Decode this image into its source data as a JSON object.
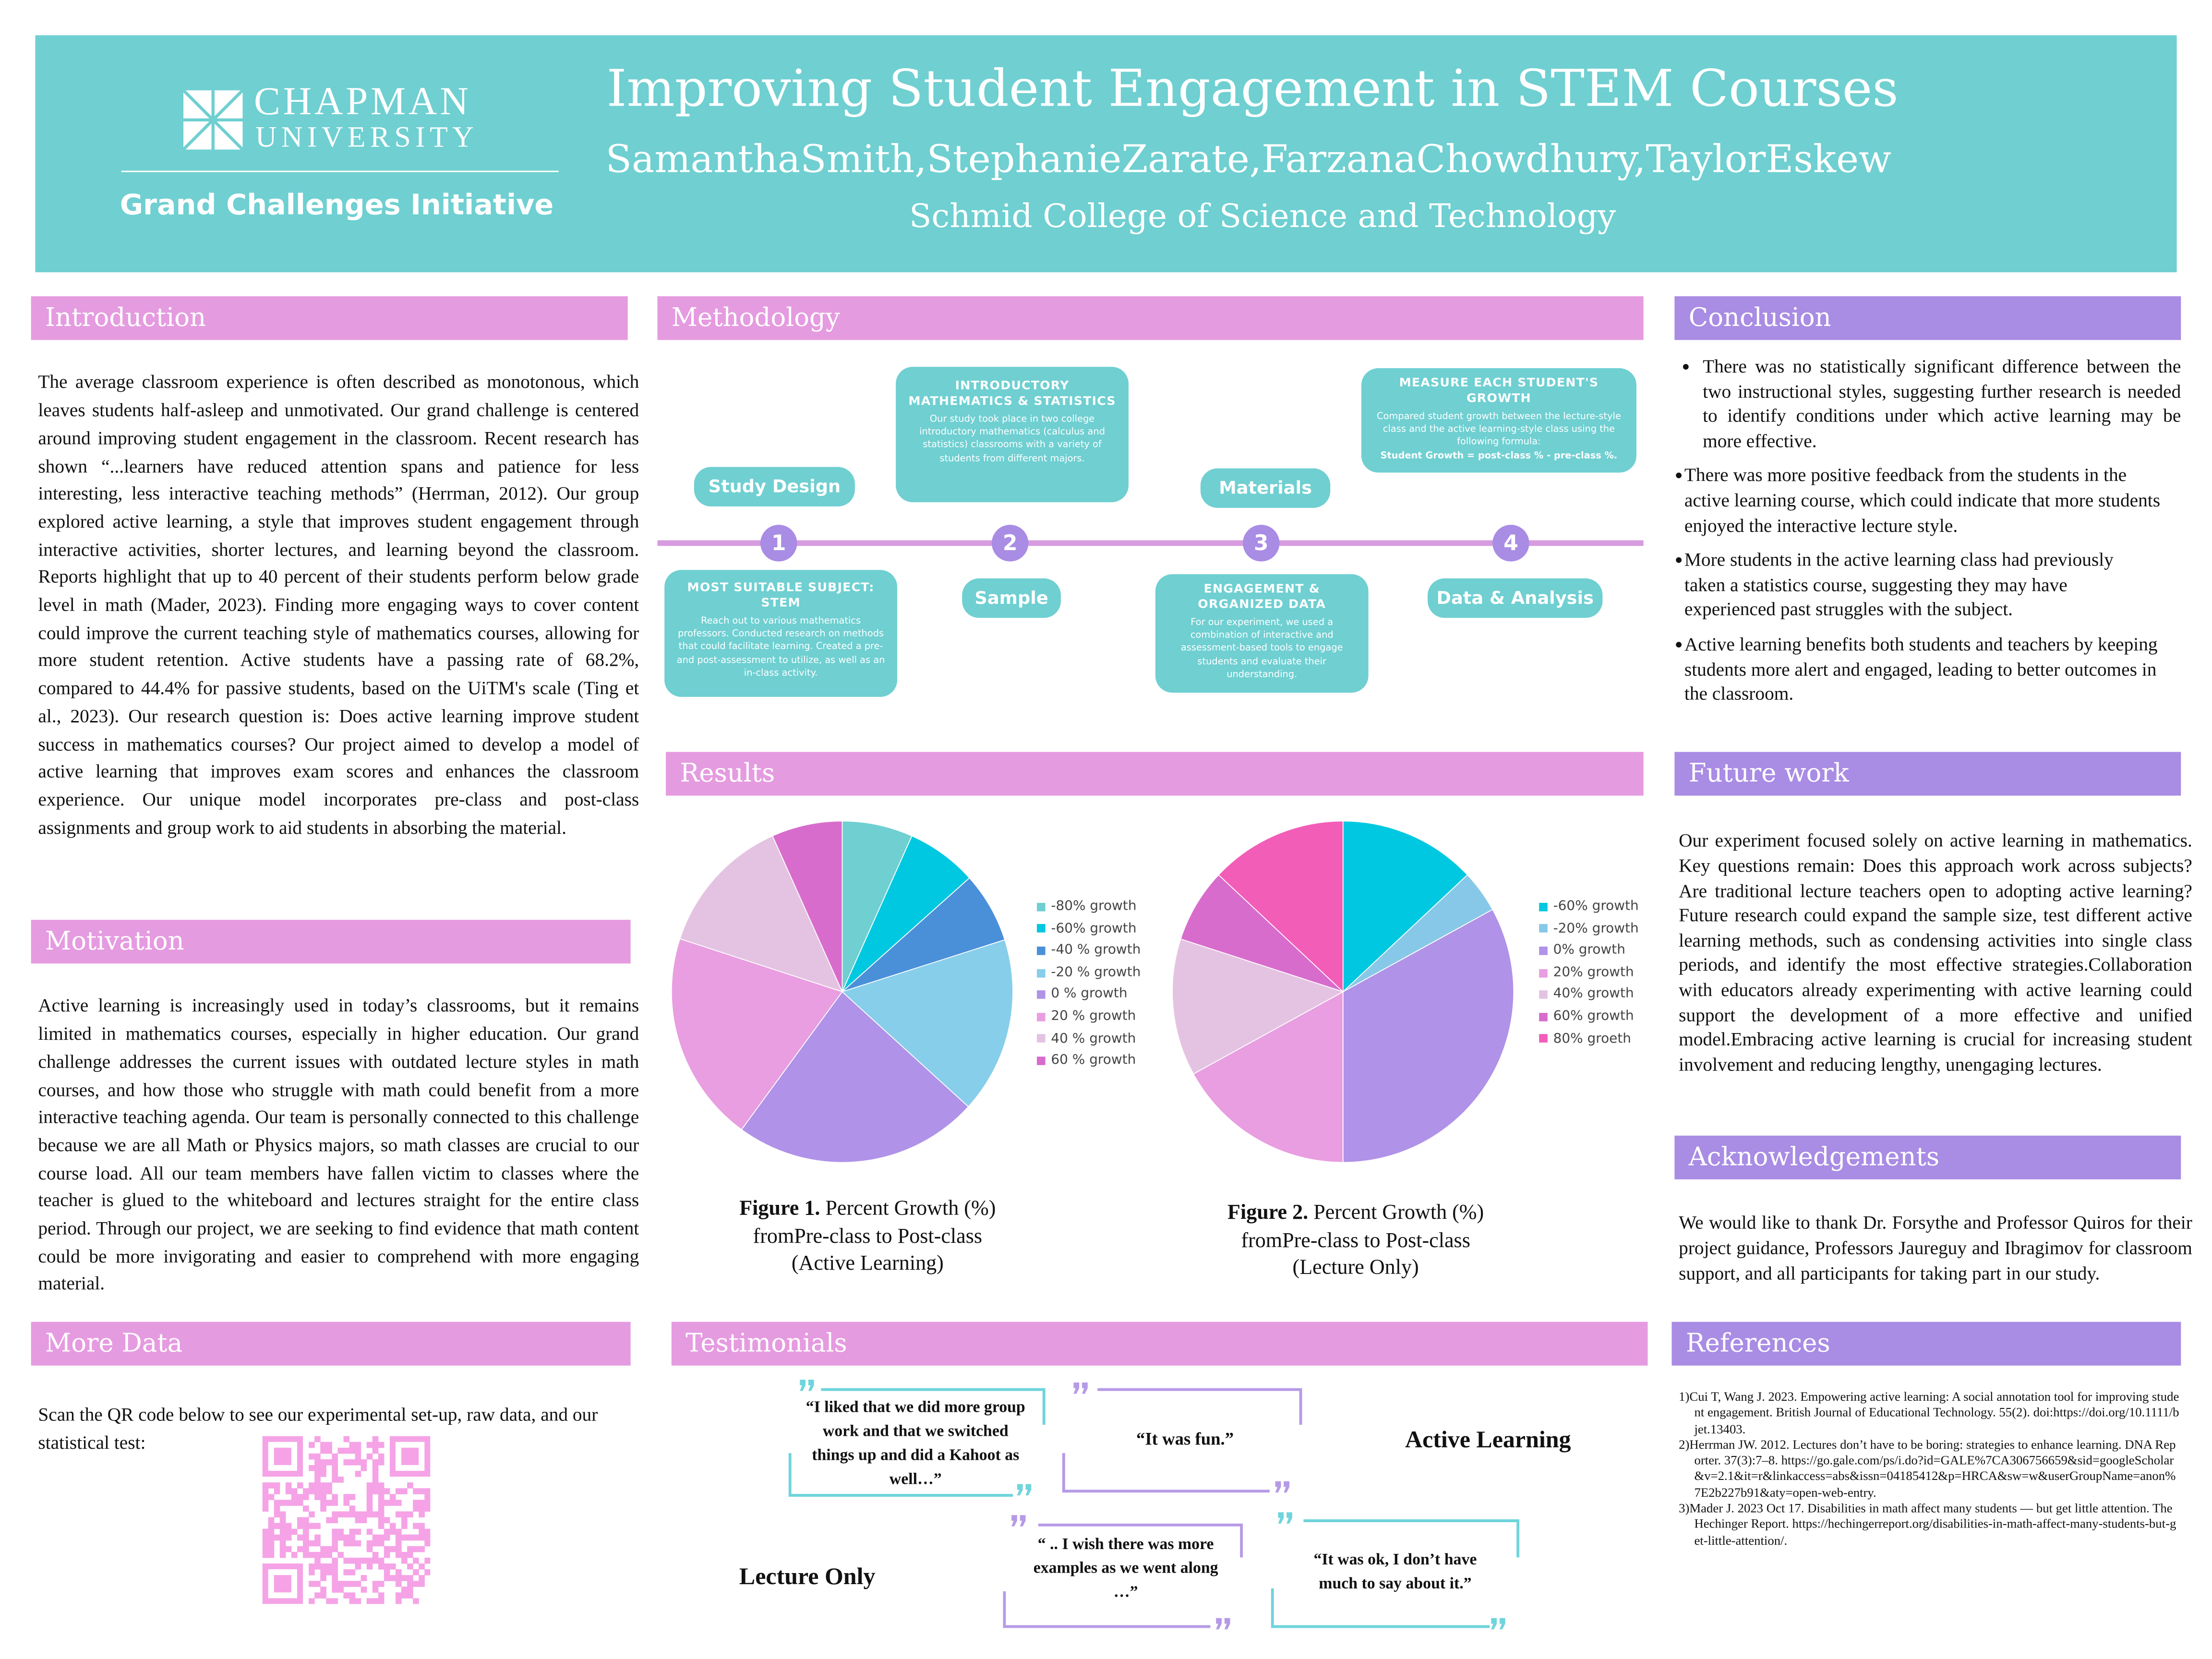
{
  "header": {
    "logo_line1": "CHAPMAN",
    "logo_line2": "UNIVERSITY",
    "initiative": "Grand Challenges Initiative",
    "title": "Improving Student Engagement in STEM Courses",
    "authors": "SamanthaSmith,StephanieZarate,FarzanaChowdhury,TaylorEskew",
    "college": "Schmid College of Science and Technology"
  },
  "introduction": {
    "heading": "Introduction",
    "body": "The average classroom experience is often described as monotonous, which leaves students half-asleep and unmotivated. Our grand challenge is centered around improving student engagement in the classroom. Recent research has shown “...learners have reduced attention spans and patience for less interesting, less interactive teaching methods” (Herrman, 2012). Our group explored active learning, a style that improves student engagement through interactive activities, shorter lectures, and learning beyond the classroom. Reports highlight that up to 40 percent of their students perform below grade level in math (Mader, 2023). Finding more engaging ways to cover content could improve the current teaching style of mathematics courses, allowing for more student retention. Active students have a passing rate of 68.2%, compared to 44.4% for passive students, based on the UiTM's scale (Ting et al., 2023). Our research question is: Does active learning improve student success in mathematics courses? Our project aimed to develop a model of active learning that improves exam scores and enhances the classroom experience. Our unique model incorporates pre-class and post-class assignments and group work to aid students in absorbing the material."
  },
  "motivation": {
    "heading": "Motivation",
    "body": "Active learning is increasingly used in today’s classrooms, but it remains limited in mathematics courses, especially in higher education. Our grand challenge addresses the current issues with outdated lecture styles in math courses, and how those who struggle with math could benefit from a more interactive teaching agenda. Our team is personally connected to this challenge because we are all Math or Physics majors, so math classes are crucial to our course load. All our team members have fallen victim to classes where the teacher is glued to the whiteboard and lectures straight for the entire class period. Through our project, we are seeking to find evidence that math content could be more invigorating and easier to comprehend with more engaging material."
  },
  "more_data": {
    "heading": "More Data",
    "body": "Scan the QR code below to see our experimental set-up, raw data, and our statistical test:"
  },
  "methodology": {
    "heading": "Methodology",
    "steps": [
      {
        "number": "1",
        "label": "Study Design",
        "box_title": "MOST SUITABLE SUBJECT: STEM",
        "box_text": "Reach out to various mathematics professors. Conducted research on methods that could facilitate learning. Created a pre- and post-assessment to utilize, as well as an in-class activity."
      },
      {
        "number": "2",
        "label": "Sample",
        "box_title": "INTRODUCTORY MATHEMATICS & STATISTICS",
        "box_text": "Our study took place in two college introductory mathematics (calculus and statistics) classrooms with a variety of students from different majors."
      },
      {
        "number": "3",
        "label": "Materials",
        "box_title": "ENGAGEMENT & ORGANIZED DATA",
        "box_text": "For our experiment, we used a combination of interactive and assessment-based tools to engage students and evaluate their understanding."
      },
      {
        "number": "4",
        "label": "Data & Analysis",
        "box_title": "MEASURE EACH STUDENT'S GROWTH",
        "box_text": "Compared student growth between the lecture-style class and the active learning-style class using the following formula:",
        "box_formula": "Student Growth = post-class % - pre-class %."
      }
    ]
  },
  "results": {
    "heading": "Results"
  },
  "chart_data": [
    {
      "type": "pie",
      "figure_label": "Figure 1.",
      "caption": [
        "Percent Growth (%)",
        "fromPre-class to Post-class",
        "(Active Learning)"
      ],
      "categories": [
        "-80% growth",
        "-60% growth",
        "-40 % growth",
        "-20 % growth",
        "0 % growth",
        "20 % growth",
        "40 % growth",
        "60 % growth"
      ],
      "values": [
        6.7,
        6.7,
        6.7,
        16.7,
        23.3,
        20,
        13.3,
        6.7
      ],
      "colors": [
        "#6fcfd1",
        "#00c8e0",
        "#4a90d9",
        "#87ceeb",
        "#b092e8",
        "#e89ee0",
        "#e4c3e2",
        "#d86ccc"
      ]
    },
    {
      "type": "pie",
      "figure_label": "Figure 2.",
      "caption": [
        "Percent Growth (%)",
        "fromPre-class to Post-class",
        "(Lecture Only)"
      ],
      "categories": [
        "-60% growth",
        "-20% growth",
        "0% growth",
        "20% growth",
        "40% growth",
        "60% growth",
        "80% groeth"
      ],
      "values": [
        13,
        4,
        33,
        17,
        13,
        7,
        13
      ],
      "colors": [
        "#00c8e0",
        "#87c8e8",
        "#b092e8",
        "#e89ee0",
        "#e4c3e2",
        "#d86ccc",
        "#f25db8"
      ]
    }
  ],
  "conclusion": {
    "heading": "Conclusion",
    "bullets": [
      "There was no statistically significant difference between the two instructional styles, suggesting further research is needed to identify conditions under which active learning may be more effective.",
      "There was more positive feedback from the students in the active learning course, which could indicate that more students enjoyed the interactive lecture style.",
      "More students in the active learning class had previously taken a statistics course, suggesting they may have experienced past struggles with the subject.",
      "Active learning benefits both students and teachers by keeping students more alert and engaged, leading to better outcomes in the classroom."
    ]
  },
  "future_work": {
    "heading": "Future work",
    "body": "Our experiment focused solely on active learning in mathematics. Key questions remain: Does this approach work across subjects? Are traditional lecture teachers open to adopting active learning? Future research could expand the sample size, test different active learning methods, such as condensing activities into single class periods, and identify the most effective strategies.Collaboration with educators already experimenting with active learning could support the development of a more effective and unified model.Embracing active learning is crucial for increasing student involvement and reducing lengthy, unengaging lectures."
  },
  "acknowledgements": {
    "heading": "Acknowledgements",
    "body": "We would like to thank Dr. Forsythe and Professor Quiros for their project guidance, Professors Jaureguy and Ibragimov for classroom support, and all participants for taking part in our study."
  },
  "testimonials": {
    "heading": "Testimonials",
    "active_label": "Active Learning",
    "lecture_label": "Lecture Only",
    "quotes": [
      "“I liked that we did more group work and that we switched things up and did a Kahoot as well…”",
      "“It was fun.”",
      "“ .. I wish there was more examples as we went along …”",
      "“It was ok, I don’t have much to say about it.”"
    ]
  },
  "references": {
    "heading": "References",
    "items": [
      "1)Cui T, Wang J. 2023. Empowering active learning: A social annotation tool for improving student engagement. British Journal of Educational Technology. 55(2). doi:https://doi.org/10.1111/bjet.13403.",
      "2)Herrman JW. 2012. Lectures don’t have to be boring: strategies to enhance learning. DNA Reporter. 37(3):7–8. https://go.gale.com/ps/i.do?id=GALE%7CA306756659&sid=googleScholar&v=2.1&it=r&linkaccess=abs&issn=04185412&p=HRCA&sw=w&userGroupName=anon%7E2b227b91&aty=open-web-entry.",
      "3)Mader J. 2023 Oct 17. Disabilities in math affect many students — but get little attention. The Hechinger Report. https://hechingerreport.org/disabilities-in-math-affect-many-students-but-get-little-attention/."
    ]
  }
}
